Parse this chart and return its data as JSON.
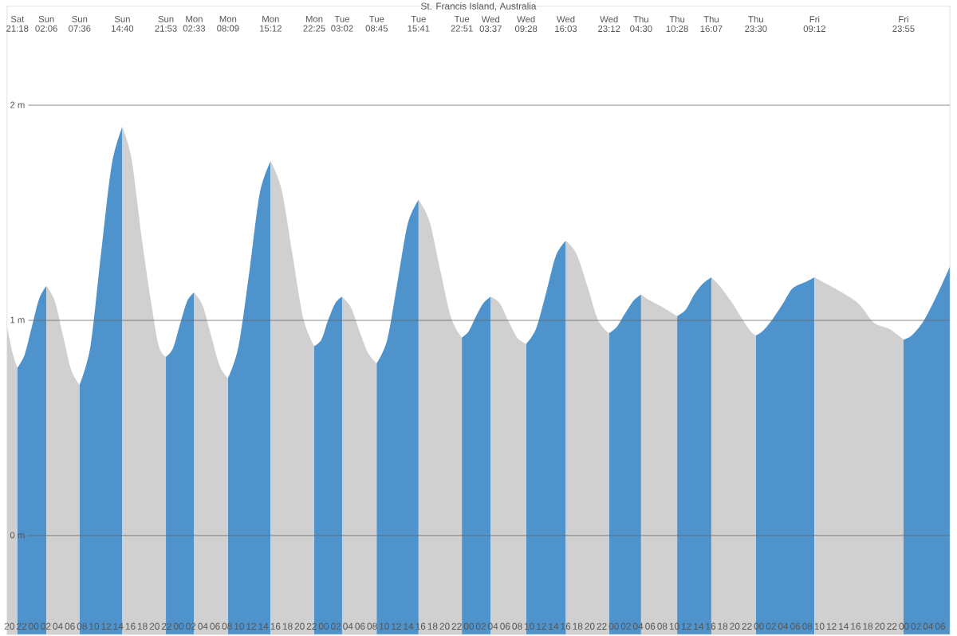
{
  "chart_data": {
    "type": "area",
    "title": "St. Francis Island, Australia",
    "xlim": [
      19.6,
      175.6
    ],
    "ylim": [
      -0.46,
      2.46
    ],
    "grid": "y",
    "yticks": [
      {
        "value": 0,
        "label": "0 m"
      },
      {
        "value": 1,
        "label": "1 m"
      },
      {
        "value": 2,
        "label": "2 m"
      }
    ],
    "xticks": [
      {
        "value": 20,
        "label": "20"
      },
      {
        "value": 22,
        "label": "22"
      },
      {
        "value": 24,
        "label": "00"
      },
      {
        "value": 26,
        "label": "02"
      },
      {
        "value": 28,
        "label": "04"
      },
      {
        "value": 30,
        "label": "06"
      },
      {
        "value": 32,
        "label": "08"
      },
      {
        "value": 34,
        "label": "10"
      },
      {
        "value": 36,
        "label": "12"
      },
      {
        "value": 38,
        "label": "14"
      },
      {
        "value": 40,
        "label": "16"
      },
      {
        "value": 42,
        "label": "18"
      },
      {
        "value": 44,
        "label": "20"
      },
      {
        "value": 46,
        "label": "22"
      },
      {
        "value": 48,
        "label": "00"
      },
      {
        "value": 50,
        "label": "02"
      },
      {
        "value": 52,
        "label": "04"
      },
      {
        "value": 54,
        "label": "06"
      },
      {
        "value": 56,
        "label": "08"
      },
      {
        "value": 58,
        "label": "10"
      },
      {
        "value": 60,
        "label": "12"
      },
      {
        "value": 62,
        "label": "14"
      },
      {
        "value": 64,
        "label": "16"
      },
      {
        "value": 66,
        "label": "18"
      },
      {
        "value": 68,
        "label": "20"
      },
      {
        "value": 70,
        "label": "22"
      },
      {
        "value": 72,
        "label": "00"
      },
      {
        "value": 74,
        "label": "02"
      },
      {
        "value": 76,
        "label": "04"
      },
      {
        "value": 78,
        "label": "06"
      },
      {
        "value": 80,
        "label": "08"
      },
      {
        "value": 82,
        "label": "10"
      },
      {
        "value": 84,
        "label": "12"
      },
      {
        "value": 86,
        "label": "14"
      },
      {
        "value": 88,
        "label": "16"
      },
      {
        "value": 90,
        "label": "18"
      },
      {
        "value": 92,
        "label": "20"
      },
      {
        "value": 94,
        "label": "22"
      },
      {
        "value": 96,
        "label": "00"
      },
      {
        "value": 98,
        "label": "02"
      },
      {
        "value": 100,
        "label": "04"
      },
      {
        "value": 102,
        "label": "06"
      },
      {
        "value": 104,
        "label": "08"
      },
      {
        "value": 106,
        "label": "10"
      },
      {
        "value": 108,
        "label": "12"
      },
      {
        "value": 110,
        "label": "14"
      },
      {
        "value": 112,
        "label": "16"
      },
      {
        "value": 114,
        "label": "18"
      },
      {
        "value": 116,
        "label": "20"
      },
      {
        "value": 118,
        "label": "22"
      },
      {
        "value": 120,
        "label": "00"
      },
      {
        "value": 122,
        "label": "02"
      },
      {
        "value": 124,
        "label": "04"
      },
      {
        "value": 126,
        "label": "06"
      },
      {
        "value": 128,
        "label": "08"
      },
      {
        "value": 130,
        "label": "10"
      },
      {
        "value": 132,
        "label": "12"
      },
      {
        "value": 134,
        "label": "14"
      },
      {
        "value": 136,
        "label": "16"
      },
      {
        "value": 138,
        "label": "18"
      },
      {
        "value": 140,
        "label": "20"
      },
      {
        "value": 142,
        "label": "22"
      },
      {
        "value": 144,
        "label": "00"
      },
      {
        "value": 146,
        "label": "02"
      },
      {
        "value": 148,
        "label": "04"
      },
      {
        "value": 150,
        "label": "06"
      },
      {
        "value": 152,
        "label": "08"
      },
      {
        "value": 154,
        "label": "10"
      },
      {
        "value": 156,
        "label": "12"
      },
      {
        "value": 158,
        "label": "14"
      },
      {
        "value": 160,
        "label": "16"
      },
      {
        "value": 162,
        "label": "18"
      },
      {
        "value": 164,
        "label": "20"
      },
      {
        "value": 166,
        "label": "22"
      },
      {
        "value": 168,
        "label": "00"
      },
      {
        "value": 170,
        "label": "02"
      },
      {
        "value": 172,
        "label": "04"
      },
      {
        "value": 174,
        "label": "06"
      }
    ],
    "annotations": [
      "Sat 21:18",
      "Sun 02:06",
      "Sun 07:36",
      "Sun 14:40",
      "Sun 21:53",
      "Mon 02:33",
      "Mon 08:09",
      "Mon 15:12",
      "Mon 22:25",
      "Tue 03:02",
      "Tue 08:45",
      "Tue 15:41",
      "Tue 22:51",
      "Wed 03:37",
      "Wed 09:28",
      "Wed 16:03",
      "Wed 23:12",
      "Thu 04:30",
      "Thu 10:28",
      "Thu 16:07",
      "Thu 23:30",
      "Fri 09:12",
      "Fri 23:55"
    ],
    "series": [
      {
        "color": "#d0d0d0",
        "x": [
          19.6,
          20.5,
          21.3
        ],
        "values": [
          0.97,
          0.85,
          0.78
        ]
      },
      {
        "color": "#4f93cd",
        "x": [
          21.3,
          22.5,
          23.7,
          24.9,
          26.1
        ],
        "values": [
          0.78,
          0.84,
          0.97,
          1.1,
          1.16
        ]
      },
      {
        "color": "#d0d0d0",
        "x": [
          26.1,
          27.5,
          28.85,
          30.2,
          31.6
        ],
        "values": [
          1.16,
          1.09,
          0.93,
          0.77,
          0.7
        ]
      },
      {
        "color": "#4f93cd",
        "x": [
          31.6,
          33.4,
          35.1,
          36.9,
          38.67
        ],
        "values": [
          0.7,
          0.88,
          1.3,
          1.72,
          1.9
        ]
      },
      {
        "color": "#d0d0d0",
        "x": [
          38.67,
          40.2,
          41.8,
          43.4,
          44.7,
          45.88
        ],
        "values": [
          1.9,
          1.75,
          1.4,
          1.09,
          0.88,
          0.83
        ]
      },
      {
        "color": "#4f93cd",
        "x": [
          45.88,
          47.05,
          48.2,
          49.4,
          50.55
        ],
        "values": [
          0.83,
          0.87,
          0.98,
          1.09,
          1.13
        ]
      },
      {
        "color": "#d0d0d0",
        "x": [
          50.55,
          51.95,
          53.35,
          54.75,
          56.15
        ],
        "values": [
          1.13,
          1.07,
          0.93,
          0.79,
          0.73
        ]
      },
      {
        "color": "#4f93cd",
        "x": [
          56.15,
          57.9,
          59.7,
          61.4,
          63.2
        ],
        "values": [
          0.73,
          0.88,
          1.23,
          1.59,
          1.74
        ]
      },
      {
        "color": "#d0d0d0",
        "x": [
          63.2,
          65.0,
          66.8,
          68.6,
          70.42
        ],
        "values": [
          1.74,
          1.61,
          1.31,
          1.01,
          0.88
        ]
      },
      {
        "color": "#4f93cd",
        "x": [
          70.42,
          71.6,
          72.7,
          73.9,
          75.03
        ],
        "values": [
          0.88,
          0.91,
          1.0,
          1.08,
          1.11
        ]
      },
      {
        "color": "#d0d0d0",
        "x": [
          75.03,
          76.5,
          77.9,
          79.3,
          80.75
        ],
        "values": [
          1.11,
          1.06,
          0.95,
          0.85,
          0.8
        ]
      },
      {
        "color": "#4f93cd",
        "x": [
          80.75,
          82.5,
          84.2,
          85.9,
          87.68
        ],
        "values": [
          0.8,
          0.91,
          1.18,
          1.45,
          1.56
        ]
      },
      {
        "color": "#d0d0d0",
        "x": [
          87.68,
          89.5,
          91.3,
          93.1,
          94.85
        ],
        "values": [
          1.56,
          1.46,
          1.23,
          1.01,
          0.92
        ]
      },
      {
        "color": "#4f93cd",
        "x": [
          94.85,
          96.0,
          97.2,
          98.4,
          99.62
        ],
        "values": [
          0.92,
          0.95,
          1.02,
          1.08,
          1.11
        ]
      },
      {
        "color": "#d0d0d0",
        "x": [
          99.62,
          101.1,
          102.5,
          104.0,
          105.47
        ],
        "values": [
          1.11,
          1.08,
          1.0,
          0.92,
          0.89
        ]
      },
      {
        "color": "#4f93cd",
        "x": [
          105.47,
          107.1,
          108.8,
          110.4,
          112.05
        ],
        "values": [
          0.89,
          0.96,
          1.13,
          1.3,
          1.37
        ]
      },
      {
        "color": "#d0d0d0",
        "x": [
          112.05,
          113.8,
          115.6,
          117.4,
          119.2
        ],
        "values": [
          1.37,
          1.31,
          1.16,
          1.0,
          0.94
        ]
      },
      {
        "color": "#4f93cd",
        "x": [
          119.2,
          120.5,
          121.8,
          123.2,
          124.5
        ],
        "values": [
          0.94,
          0.97,
          1.03,
          1.09,
          1.12
        ]
      },
      {
        "color": "#d0d0d0",
        "x": [
          124.5,
          125.5,
          127.5,
          129.3,
          130.47
        ],
        "values": [
          1.12,
          1.1,
          1.07,
          1.04,
          1.02
        ]
      },
      {
        "color": "#4f93cd",
        "x": [
          130.47,
          131.9,
          133.3,
          134.7,
          136.12
        ],
        "values": [
          1.02,
          1.05,
          1.12,
          1.17,
          1.2
        ]
      },
      {
        "color": "#d0d0d0",
        "x": [
          136.12,
          137.5,
          139.6,
          141.4,
          142.6,
          143.5
        ],
        "values": [
          1.2,
          1.16,
          1.08,
          1.0,
          0.95,
          0.93
        ]
      },
      {
        "color": "#4f93cd",
        "x": [
          143.5,
          144.6,
          146.1,
          148.0,
          149.6,
          151.8,
          153.2
        ],
        "values": [
          0.93,
          0.95,
          1.0,
          1.08,
          1.15,
          1.18,
          1.2
        ]
      },
      {
        "color": "#d0d0d0",
        "x": [
          153.2,
          154.5,
          156.5,
          160.4,
          163.0,
          165.6,
          167.92
        ],
        "values": [
          1.2,
          1.18,
          1.15,
          1.08,
          0.99,
          0.96,
          0.91
        ]
      },
      {
        "color": "#4f93cd",
        "x": [
          167.92,
          169.3,
          171.3,
          173.5,
          175.6
        ],
        "values": [
          0.91,
          0.93,
          1.0,
          1.12,
          1.25
        ]
      }
    ]
  }
}
